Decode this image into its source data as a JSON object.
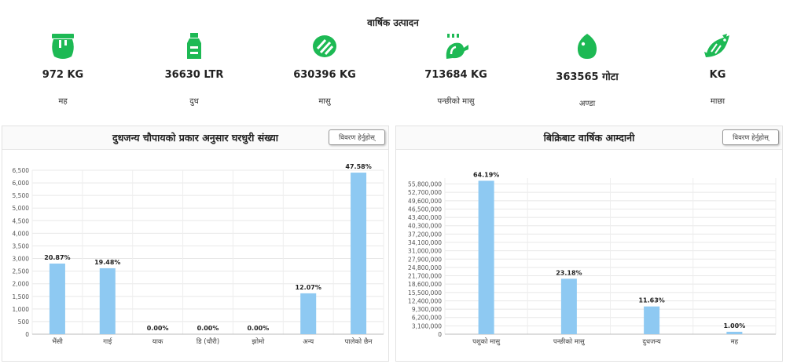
{
  "production": {
    "title": "वार्षिक उत्पादन",
    "items": [
      {
        "icon": "honey-jar-icon",
        "value": "972 KG",
        "label": "मह"
      },
      {
        "icon": "milk-bottle-icon",
        "value": "36630 LTR",
        "label": "दुध"
      },
      {
        "icon": "meat-icon",
        "value": "630396 KG",
        "label": "मासु"
      },
      {
        "icon": "chicken-leg-icon",
        "value": "713684 KG",
        "label": "पन्छीको मासु"
      },
      {
        "icon": "egg-icon",
        "value": "363565 गोटा",
        "label": "अण्डा"
      },
      {
        "icon": "fish-icon",
        "value": "KG",
        "label": "माछा"
      }
    ],
    "accent": "#1db954"
  },
  "panels": {
    "left": {
      "title": "दुधजन्य चौपायको प्रकार अनुसार घरधुरी संख्या",
      "button": "विवरण हेर्नुहोस्"
    },
    "right": {
      "title": "बिक्रिबाट वार्षिक आम्दानी",
      "button": "विवरण हेर्नुहोस्"
    }
  },
  "chart_data": [
    {
      "type": "bar",
      "categories": [
        "भैंसी",
        "गाई",
        "याक",
        "डि (चौरी)",
        "झोमो",
        "अन्य",
        "पालेको छैन"
      ],
      "values": [
        2800,
        2615,
        0,
        0,
        0,
        1620,
        6405
      ],
      "data_labels": [
        "20.87%",
        "19.48%",
        "0.00%",
        "0.00%",
        "0.00%",
        "12.07%",
        "47.58%"
      ],
      "yticks": [
        "0",
        "500",
        "1,000",
        "1,500",
        "2,000",
        "2,500",
        "3,000",
        "3,500",
        "4,000",
        "4,500",
        "5,000",
        "5,500",
        "6,000",
        "6,500"
      ],
      "ylim": [
        0,
        6500
      ],
      "bar_color": "#8ec9f2",
      "grid": true
    },
    {
      "type": "bar",
      "categories": [
        "पशुको मासु",
        "पन्छीको मासु",
        "दुधजन्य",
        "मह"
      ],
      "values": [
        57000000,
        20600000,
        10300000,
        900000
      ],
      "data_labels": [
        "64.19%",
        "23.18%",
        "11.63%",
        "1.00%"
      ],
      "yticks": [
        "0",
        "3,100,000",
        "6,200,000",
        "9,300,000",
        "12,400,000",
        "15,500,000",
        "18,600,000",
        "21,700,000",
        "24,800,000",
        "27,900,000",
        "31,000,000",
        "34,100,000",
        "37,200,000",
        "40,300,000",
        "43,400,000",
        "46,500,000",
        "49,600,000",
        "52,700,000",
        "55,800,000"
      ],
      "ylim": [
        0,
        58000000
      ],
      "bar_color": "#8ec9f2",
      "grid": true
    }
  ]
}
